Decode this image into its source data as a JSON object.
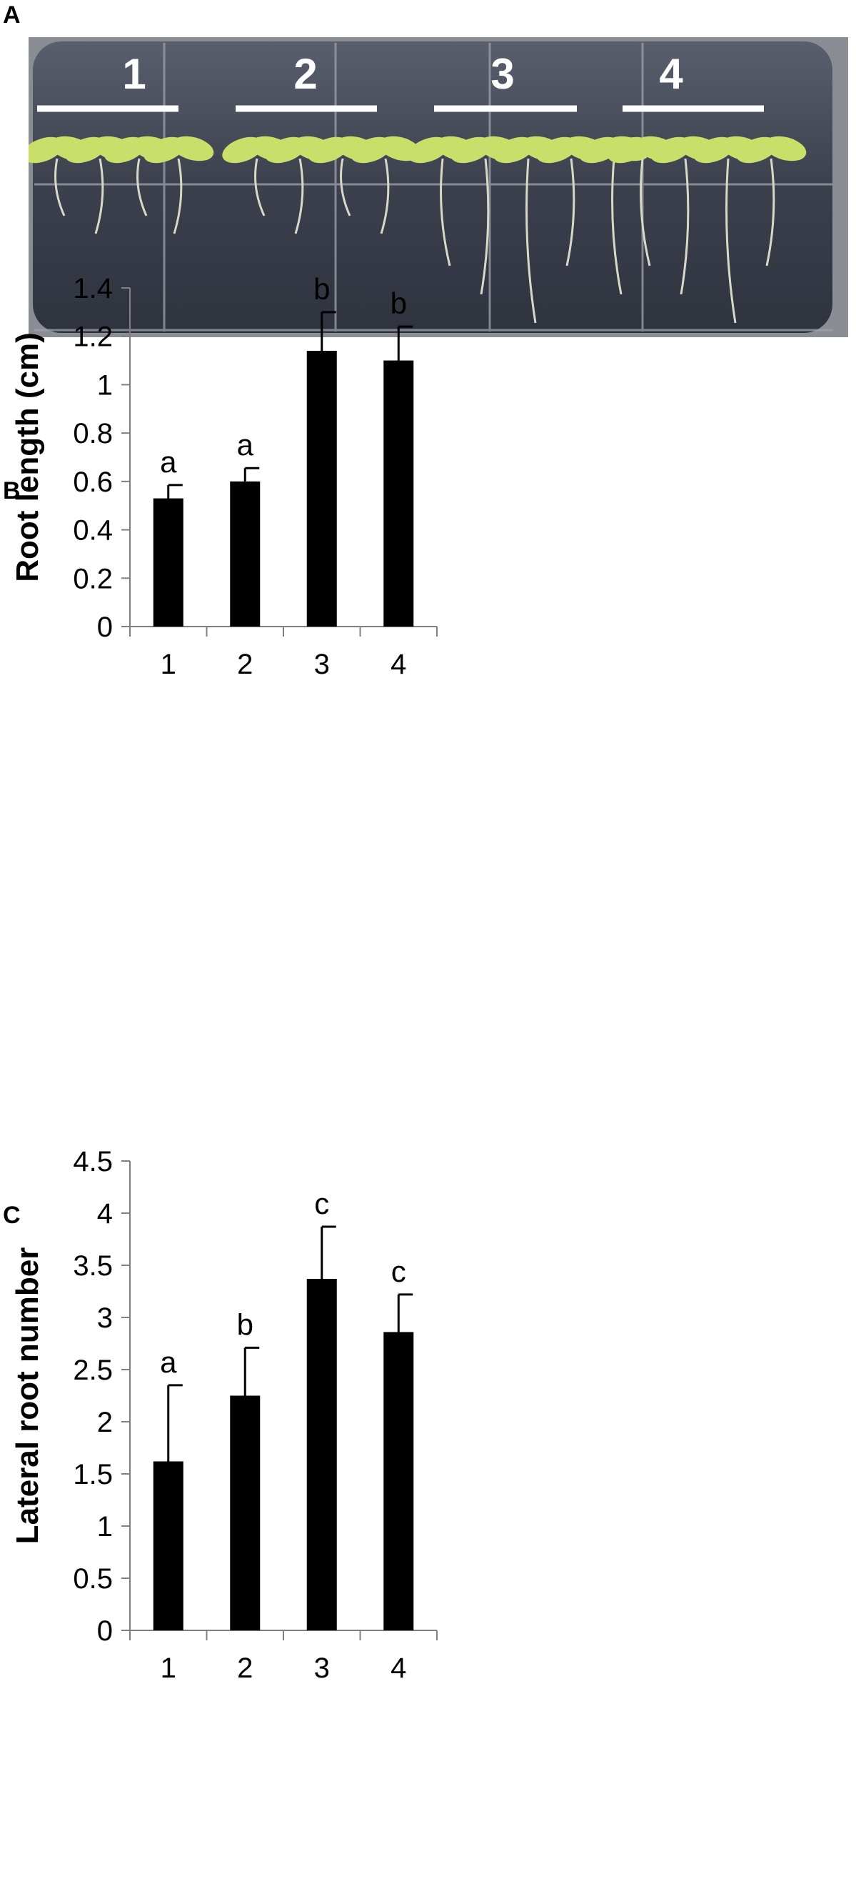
{
  "panels": {
    "a": {
      "letter": "A",
      "lane_labels": [
        "1",
        "2",
        "3",
        "4"
      ]
    },
    "b": {
      "letter": "B"
    },
    "c": {
      "letter": "C"
    }
  },
  "colors": {
    "bar": "#000000",
    "axis": "#808080",
    "seedling": "#c9df6a",
    "plate": "#3e4250"
  },
  "chart_data": [
    {
      "type": "bar",
      "categories": [
        "1",
        "2",
        "3",
        "4"
      ],
      "values": [
        0.53,
        0.6,
        1.14,
        1.1
      ],
      "error": [
        0.055,
        0.055,
        0.16,
        0.14
      ],
      "annotations": [
        "a",
        "a",
        "b",
        "b"
      ],
      "title": "",
      "xlabel": "",
      "ylabel": "Root length (cm)",
      "ylim": [
        0,
        1.4
      ],
      "yticks": [
        0,
        0.2,
        0.4,
        0.6,
        0.8,
        1,
        1.2,
        1.4
      ],
      "ytick_labels": [
        "0",
        "0.2",
        "0.4",
        "0.6",
        "0.8",
        "1",
        "1.2",
        "1.4"
      ],
      "grid": false,
      "legend": "none"
    },
    {
      "type": "bar",
      "categories": [
        "1",
        "2",
        "3",
        "4"
      ],
      "values": [
        1.62,
        2.25,
        3.37,
        2.86
      ],
      "error": [
        0.73,
        0.46,
        0.5,
        0.36
      ],
      "annotations": [
        "a",
        "b",
        "c",
        "c"
      ],
      "title": "",
      "xlabel": "",
      "ylabel": "Lateral root number",
      "ylim": [
        0,
        4.5
      ],
      "yticks": [
        0,
        0.5,
        1,
        1.5,
        2,
        2.5,
        3,
        3.5,
        4,
        4.5
      ],
      "ytick_labels": [
        "0",
        "0.5",
        "1",
        "1.5",
        "2",
        "2.5",
        "3",
        "3.5",
        "4",
        "4.5"
      ],
      "grid": false,
      "legend": "none"
    }
  ]
}
